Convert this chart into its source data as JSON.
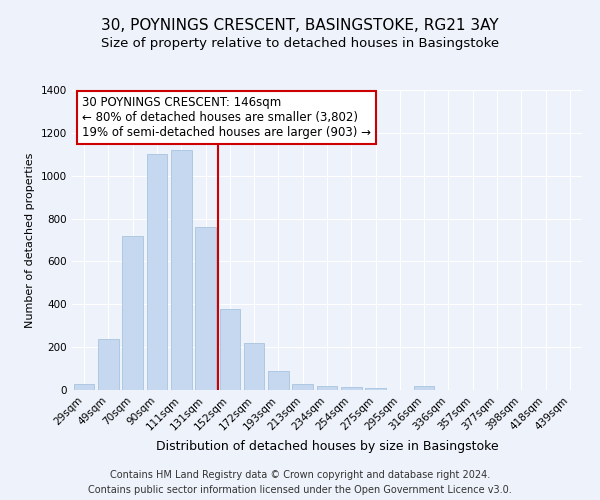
{
  "title1": "30, POYNINGS CRESCENT, BASINGSTOKE, RG21 3AY",
  "title2": "Size of property relative to detached houses in Basingstoke",
  "xlabel": "Distribution of detached houses by size in Basingstoke",
  "ylabel": "Number of detached properties",
  "categories": [
    "29sqm",
    "49sqm",
    "70sqm",
    "90sqm",
    "111sqm",
    "131sqm",
    "152sqm",
    "172sqm",
    "193sqm",
    "213sqm",
    "234sqm",
    "254sqm",
    "275sqm",
    "295sqm",
    "316sqm",
    "336sqm",
    "357sqm",
    "377sqm",
    "398sqm",
    "418sqm",
    "439sqm"
  ],
  "values": [
    29,
    240,
    720,
    1100,
    1120,
    760,
    380,
    220,
    90,
    30,
    20,
    15,
    10,
    0,
    20,
    0,
    0,
    0,
    0,
    0,
    0
  ],
  "bar_color": "#c5d8f0",
  "bar_edge_color": "#a8c4e0",
  "vline_x": 5.5,
  "vline_color": "#cc0000",
  "annotation_text": "30 POYNINGS CRESCENT: 146sqm\n← 80% of detached houses are smaller (3,802)\n19% of semi-detached houses are larger (903) →",
  "annotation_box_color": "#ffffff",
  "annotation_box_edge": "#cc0000",
  "ylim": [
    0,
    1400
  ],
  "yticks": [
    0,
    200,
    400,
    600,
    800,
    1000,
    1200,
    1400
  ],
  "footer1": "Contains HM Land Registry data © Crown copyright and database right 2024.",
  "footer2": "Contains public sector information licensed under the Open Government Licence v3.0.",
  "bg_color": "#eef2fa",
  "title1_fontsize": 11,
  "title2_fontsize": 9.5,
  "annotation_fontsize": 8.5,
  "tick_fontsize": 7.5,
  "ylabel_fontsize": 8,
  "xlabel_fontsize": 9
}
